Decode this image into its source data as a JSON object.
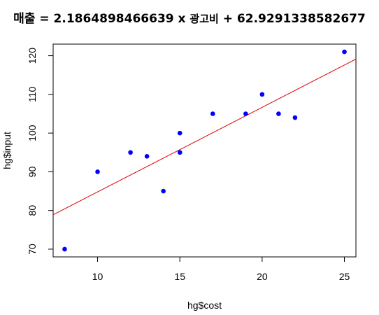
{
  "chart_data": {
    "type": "scatter",
    "title": {
      "prefix": "매출 = ",
      "slope": "2.1864898466639",
      "times": " x ",
      "variable": "광고비",
      "plus": " + ",
      "intercept": "62.9291338582677"
    },
    "xlabel": "hg$cost",
    "ylabel": "hg$input",
    "xlim": [
      7.3,
      25.7
    ],
    "ylim": [
      68,
      123
    ],
    "x_ticks": [
      10,
      15,
      20,
      25
    ],
    "y_ticks": [
      70,
      80,
      90,
      100,
      110,
      120
    ],
    "points": [
      {
        "x": 8,
        "y": 70
      },
      {
        "x": 10,
        "y": 90
      },
      {
        "x": 12,
        "y": 95
      },
      {
        "x": 13,
        "y": 94
      },
      {
        "x": 14,
        "y": 85
      },
      {
        "x": 15,
        "y": 100
      },
      {
        "x": 15,
        "y": 95
      },
      {
        "x": 17,
        "y": 105
      },
      {
        "x": 19,
        "y": 105
      },
      {
        "x": 20,
        "y": 110
      },
      {
        "x": 21,
        "y": 105
      },
      {
        "x": 22,
        "y": 104
      },
      {
        "x": 25,
        "y": 121
      }
    ],
    "regression": {
      "slope": 2.1864898466639,
      "intercept": 62.9291338582677
    },
    "point_color": "#0000ff",
    "line_color": "#dd0000",
    "grid": false,
    "legend": "none"
  }
}
